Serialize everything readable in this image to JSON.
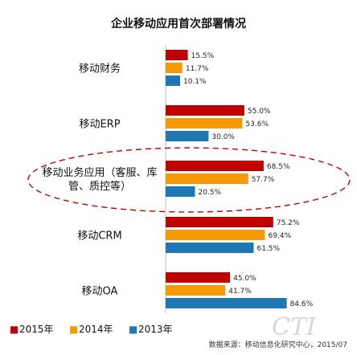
{
  "chart_data": {
    "type": "bar",
    "orientation": "horizontal",
    "title": "企业移动应用首次部署情况",
    "categories": [
      [
        "移动财务"
      ],
      [
        "移动ERP"
      ],
      [
        "移动业务应用（客服、库",
        "管、质控等）"
      ],
      [
        "移动CRM"
      ],
      [
        "移动OA"
      ]
    ],
    "series": [
      {
        "name": "2015年",
        "color": "#c00000",
        "values": [
          15.5,
          55.0,
          68.5,
          75.2,
          45.0
        ],
        "labels": [
          "15.5%",
          "55.0%",
          "68.5%",
          "75.2%",
          "45.0%"
        ]
      },
      {
        "name": "2014年",
        "color": "#f59a00",
        "values": [
          11.7,
          53.6,
          57.7,
          69.4,
          41.7
        ],
        "labels": [
          "11.7%",
          "53.6%",
          "57.7%",
          "69.4%",
          "41.7%"
        ]
      },
      {
        "name": "2013年",
        "color": "#1f77b4",
        "values": [
          10.1,
          30.0,
          20.5,
          61.5,
          84.6
        ],
        "labels": [
          "10.1%",
          "30.0%",
          "20.5%",
          "61.5%",
          "84.6%"
        ]
      }
    ],
    "xlim": [
      0,
      100
    ],
    "grid": false,
    "legend_position": "bottom-left",
    "highlight_category_index": 2,
    "legend_marker": "■",
    "source": "数据来源：移动信息化研究中心，2015/07",
    "watermark": "CTI"
  }
}
